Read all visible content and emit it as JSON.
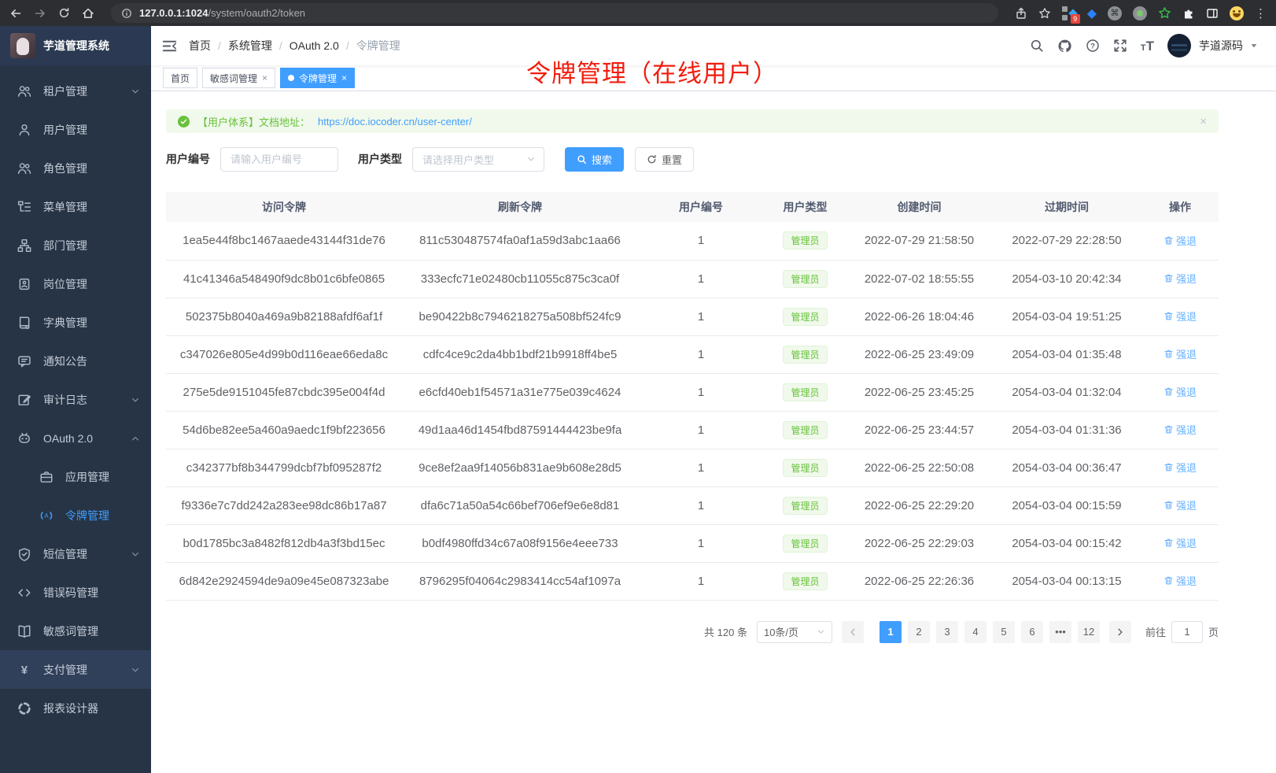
{
  "browser": {
    "url_host": "127.0.0.1:1024",
    "url_path": "/system/oauth2/token",
    "extension_badge": "9"
  },
  "app_title": "芋道管理系统",
  "sidebar": {
    "items": [
      {
        "label": "租户管理",
        "icon": "tenant",
        "arrow": "down"
      },
      {
        "label": "用户管理",
        "icon": "user"
      },
      {
        "label": "角色管理",
        "icon": "role"
      },
      {
        "label": "菜单管理",
        "icon": "menutree"
      },
      {
        "label": "部门管理",
        "icon": "org"
      },
      {
        "label": "岗位管理",
        "icon": "post"
      },
      {
        "label": "字典管理",
        "icon": "dict"
      },
      {
        "label": "通知公告",
        "icon": "notice"
      },
      {
        "label": "审计日志",
        "icon": "audit",
        "arrow": "down"
      },
      {
        "label": "OAuth 2.0",
        "icon": "oauth",
        "arrow": "up"
      },
      {
        "label": "应用管理",
        "icon": "appmgr",
        "sub": true
      },
      {
        "label": "令牌管理",
        "icon": "token",
        "sub": true,
        "active": true
      },
      {
        "label": "短信管理",
        "icon": "sms",
        "arrow": "down"
      },
      {
        "label": "错误码管理",
        "icon": "errcode"
      },
      {
        "label": "敏感词管理",
        "icon": "sensitive"
      },
      {
        "label": "支付管理",
        "icon": "pay",
        "arrow": "down",
        "highlight": true
      },
      {
        "label": "报表设计器",
        "icon": "report"
      }
    ]
  },
  "header": {
    "breadcrumb": [
      "首页",
      "系统管理",
      "OAuth 2.0",
      "令牌管理"
    ],
    "user_name": "芋道源码"
  },
  "tabs": [
    {
      "label": "首页",
      "closable": false,
      "active": false
    },
    {
      "label": "敏感词管理",
      "closable": true,
      "active": false
    },
    {
      "label": "令牌管理",
      "closable": true,
      "active": true
    }
  ],
  "annotation": {
    "text": "令牌管理（在线用户）"
  },
  "alert": {
    "prefix": "【用户体系】文档地址：",
    "link": "https://doc.iocoder.cn/user-center/",
    "close": "×"
  },
  "filters": {
    "user_id_label": "用户编号",
    "user_id_placeholder": "请输入用户编号",
    "user_type_label": "用户类型",
    "user_type_placeholder": "请选择用户类型",
    "search_label": "搜索",
    "reset_label": "重置"
  },
  "table": {
    "columns": [
      "访问令牌",
      "刷新令牌",
      "用户编号",
      "用户类型",
      "创建时间",
      "过期时间",
      "操作"
    ],
    "user_type_badge": "管理员",
    "action_label": "强退",
    "rows": [
      {
        "access": "1ea5e44f8bc1467aaede43144f31de76",
        "refresh": "811c530487574fa0af1a59d3abc1aa66",
        "user_id": "1",
        "created": "2022-07-29 21:58:50",
        "expires": "2022-07-29 22:28:50"
      },
      {
        "access": "41c41346a548490f9dc8b01c6bfe0865",
        "refresh": "333ecfc71e02480cb11055c875c3ca0f",
        "user_id": "1",
        "created": "2022-07-02 18:55:55",
        "expires": "2054-03-10 20:42:34"
      },
      {
        "access": "502375b8040a469a9b82188afdf6af1f",
        "refresh": "be90422b8c7946218275a508bf524fc9",
        "user_id": "1",
        "created": "2022-06-26 18:04:46",
        "expires": "2054-03-04 19:51:25"
      },
      {
        "access": "c347026e805e4d99b0d116eae66eda8c",
        "refresh": "cdfc4ce9c2da4bb1bdf21b9918ff4be5",
        "user_id": "1",
        "created": "2022-06-25 23:49:09",
        "expires": "2054-03-04 01:35:48"
      },
      {
        "access": "275e5de9151045fe87cbdc395e004f4d",
        "refresh": "e6cfd40eb1f54571a31e775e039c4624",
        "user_id": "1",
        "created": "2022-06-25 23:45:25",
        "expires": "2054-03-04 01:32:04"
      },
      {
        "access": "54d6be82ee5a460a9aedc1f9bf223656",
        "refresh": "49d1aa46d1454fbd87591444423be9fa",
        "user_id": "1",
        "created": "2022-06-25 23:44:57",
        "expires": "2054-03-04 01:31:36"
      },
      {
        "access": "c342377bf8b344799dcbf7bf095287f2",
        "refresh": "9ce8ef2aa9f14056b831ae9b608e28d5",
        "user_id": "1",
        "created": "2022-06-25 22:50:08",
        "expires": "2054-03-04 00:36:47"
      },
      {
        "access": "f9336e7c7dd242a283ee98dc86b17a87",
        "refresh": "dfa6c71a50a54c66bef706ef9e6e8d81",
        "user_id": "1",
        "created": "2022-06-25 22:29:20",
        "expires": "2054-03-04 00:15:59"
      },
      {
        "access": "b0d1785bc3a8482f812db4a3f3bd15ec",
        "refresh": "b0df4980ffd34c67a08f9156e4eee733",
        "user_id": "1",
        "created": "2022-06-25 22:29:03",
        "expires": "2054-03-04 00:15:42"
      },
      {
        "access": "6d842e2924594de9a09e45e087323abe",
        "refresh": "8796295f04064c2983414cc54af1097a",
        "user_id": "1",
        "created": "2022-06-25 22:26:36",
        "expires": "2054-03-04 00:13:15"
      }
    ]
  },
  "pagination": {
    "total_label": "共 120 条",
    "page_size": "10条/页",
    "pages": [
      "1",
      "2",
      "3",
      "4",
      "5",
      "6",
      "•••",
      "12"
    ],
    "active_page": "1",
    "goto_label": "前往",
    "goto_value": "1",
    "goto_suffix": "页"
  },
  "colors": {
    "primary": "#409eff",
    "success": "#67c23a",
    "annotation_red": "#f21d0d",
    "sidebar_bg": "#273445"
  }
}
